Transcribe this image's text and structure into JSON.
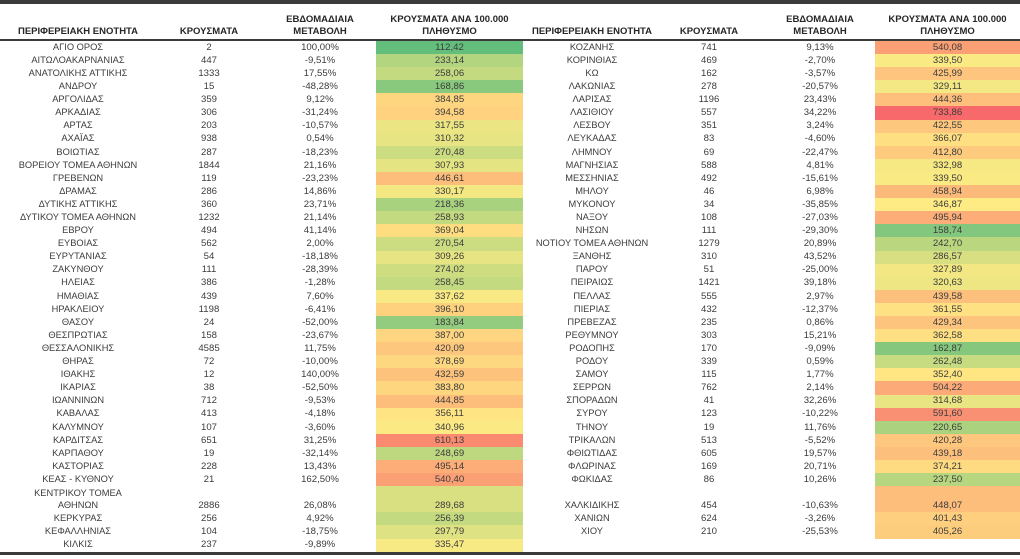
{
  "chart_data": {
    "type": "table",
    "columns": [
      "ΠΕΡΙΦΕΡΕΙΑΚΗ ΕΝΟΤΗΤΑ",
      "ΚΡΟΥΣΜΑΤΑ",
      "ΕΒΔΟΜΑΔΙΑΙΑ ΜΕΤΑΒΟΛΗ",
      "ΚΡΟΥΣΜΑΤΑ ΑΝΑ 100.000 ΠΛΗΘΥΣΜΟ"
    ],
    "color_scale": {
      "min_value": 112.42,
      "min_color": "#63BE7B",
      "mid_value": 346.87,
      "mid_color": "#FFEB84",
      "max_value": 733.86,
      "max_color": "#F8696B"
    },
    "panels": [
      {
        "rows": [
          [
            "ΑΓΙΟ ΟΡΟΣ",
            "2",
            "100,00%",
            "112,42"
          ],
          [
            "ΑΙΤΩΛΟΑΚΑΡΝΑΝΙΑΣ",
            "447",
            "-9,51%",
            "233,14"
          ],
          [
            "ΑΝΑΤΟΛΙΚΗΣ ΑΤΤΙΚΗΣ",
            "1333",
            "17,55%",
            "258,06"
          ],
          [
            "ΑΝΔΡΟΥ",
            "15",
            "-48,28%",
            "168,86"
          ],
          [
            "ΑΡΓΟΛΙΔΑΣ",
            "359",
            "9,12%",
            "384,85"
          ],
          [
            "ΑΡΚΑΔΙΑΣ",
            "306",
            "-31,24%",
            "394,58"
          ],
          [
            "ΑΡΤΑΣ",
            "203",
            "-10,57%",
            "317,55"
          ],
          [
            "ΑΧΑΪΑΣ",
            "938",
            "0,54%",
            "310,32"
          ],
          [
            "ΒΟΙΩΤΙΑΣ",
            "287",
            "-18,23%",
            "270,48"
          ],
          [
            "ΒΟΡΕΙΟΥ ΤΟΜΕΑ ΑΘΗΝΩΝ",
            "1844",
            "21,16%",
            "307,93"
          ],
          [
            "ΓΡΕΒΕΝΩΝ",
            "119",
            "-23,23%",
            "446,61"
          ],
          [
            "ΔΡΑΜΑΣ",
            "286",
            "14,86%",
            "330,17"
          ],
          [
            "ΔΥΤΙΚΗΣ ΑΤΤΙΚΗΣ",
            "360",
            "23,71%",
            "218,36"
          ],
          [
            "ΔΥΤΙΚΟΥ ΤΟΜΕΑ ΑΘΗΝΩΝ",
            "1232",
            "21,14%",
            "258,93"
          ],
          [
            "ΕΒΡΟΥ",
            "494",
            "41,14%",
            "369,04"
          ],
          [
            "ΕΥΒΟΙΑΣ",
            "562",
            "2,00%",
            "270,54"
          ],
          [
            "ΕΥΡΥΤΑΝΙΑΣ",
            "54",
            "-18,18%",
            "309,26"
          ],
          [
            "ΖΑΚΥΝΘΟΥ",
            "111",
            "-28,39%",
            "274,02"
          ],
          [
            "ΗΛΕΙΑΣ",
            "386",
            "-1,28%",
            "258,45"
          ],
          [
            "ΗΜΑΘΙΑΣ",
            "439",
            "7,60%",
            "337,62"
          ],
          [
            "ΗΡΑΚΛΕΙΟΥ",
            "1198",
            "-6,41%",
            "396,10"
          ],
          [
            "ΘΑΣΟΥ",
            "24",
            "-52,00%",
            "183,84"
          ],
          [
            "ΘΕΣΠΡΩΤΙΑΣ",
            "158",
            "-23,67%",
            "387,00"
          ],
          [
            "ΘΕΣΣΑΛΟΝΙΚΗΣ",
            "4585",
            "11,75%",
            "420,09"
          ],
          [
            "ΘΗΡΑΣ",
            "72",
            "-10,00%",
            "378,69"
          ],
          [
            "ΙΘΑΚΗΣ",
            "12",
            "140,00%",
            "432,59"
          ],
          [
            "ΙΚΑΡΙΑΣ",
            "38",
            "-52,50%",
            "383,80"
          ],
          [
            "ΙΩΑΝΝΙΝΩΝ",
            "712",
            "-9,53%",
            "444,85"
          ],
          [
            "ΚΑΒΑΛΑΣ",
            "413",
            "-4,18%",
            "356,11"
          ],
          [
            "ΚΑΛΥΜΝΟΥ",
            "107",
            "-3,60%",
            "340,96"
          ],
          [
            "ΚΑΡΔΙΤΣΑΣ",
            "651",
            "31,25%",
            "610,13"
          ],
          [
            "ΚΑΡΠΑΘΟΥ",
            "19",
            "-32,14%",
            "248,69"
          ],
          [
            "ΚΑΣΤΟΡΙΑΣ",
            "228",
            "13,43%",
            "495,14"
          ],
          [
            "ΚΕΑΣ - ΚΥΘΝΟΥ",
            "21",
            "162,50%",
            "540,40"
          ],
          [
            "ΚΕΝΤΡΙΚΟΥ ΤΟΜΕΑ\nΑΘΗΝΩΝ",
            "2886",
            "26,08%",
            "289,68",
            "tall"
          ],
          [
            "ΚΕΡΚΥΡΑΣ",
            "256",
            "4,92%",
            "256,39"
          ],
          [
            "ΚΕΦΑΛΛΗΝΙΑΣ",
            "104",
            "-18,75%",
            "297,79"
          ],
          [
            "ΚΙΛΚΙΣ",
            "237",
            "-9,89%",
            "335,47"
          ]
        ]
      },
      {
        "rows": [
          [
            "ΚΟΖΑΝΗΣ",
            "741",
            "9,13%",
            "540,08"
          ],
          [
            "ΚΟΡΙΝΘΙΑΣ",
            "469",
            "-2,70%",
            "339,50"
          ],
          [
            "ΚΩ",
            "162",
            "-3,57%",
            "425,99"
          ],
          [
            "ΛΑΚΩΝΙΑΣ",
            "278",
            "-20,57%",
            "329,11"
          ],
          [
            "ΛΑΡΙΣΑΣ",
            "1196",
            "23,43%",
            "444,36"
          ],
          [
            "ΛΑΣΙΘΙΟΥ",
            "557",
            "34,22%",
            "733,86"
          ],
          [
            "ΛΕΣΒΟΥ",
            "351",
            "3,24%",
            "422,55"
          ],
          [
            "ΛΕΥΚΑΔΑΣ",
            "83",
            "-4,60%",
            "366,07"
          ],
          [
            "ΛΗΜΝΟΥ",
            "69",
            "-22,47%",
            "412,80"
          ],
          [
            "ΜΑΓΝΗΣΙΑΣ",
            "588",
            "4,81%",
            "332,98"
          ],
          [
            "ΜΕΣΣΗΝΙΑΣ",
            "492",
            "-15,61%",
            "339,50"
          ],
          [
            "ΜΗΛΟΥ",
            "46",
            "6,98%",
            "458,94"
          ],
          [
            "ΜΥΚΟΝΟΥ",
            "34",
            "-35,85%",
            "346,87"
          ],
          [
            "ΝΑΞΟΥ",
            "108",
            "-27,03%",
            "495,94"
          ],
          [
            "ΝΗΣΩΝ",
            "111",
            "-29,30%",
            "158,74"
          ],
          [
            "ΝΟΤΙΟΥ ΤΟΜΕΑ ΑΘΗΝΩΝ",
            "1279",
            "20,89%",
            "242,70"
          ],
          [
            "ΞΑΝΘΗΣ",
            "310",
            "43,52%",
            "286,57"
          ],
          [
            "ΠΑΡΟΥ",
            "51",
            "-25,00%",
            "327,89"
          ],
          [
            "ΠΕΙΡΑΙΩΣ",
            "1421",
            "39,18%",
            "320,63"
          ],
          [
            "ΠΕΛΛΑΣ",
            "555",
            "2,97%",
            "439,58"
          ],
          [
            "ΠΙΕΡΙΑΣ",
            "432",
            "-12,37%",
            "361,55"
          ],
          [
            "ΠΡΕΒΕΖΑΣ",
            "235",
            "0,86%",
            "429,34"
          ],
          [
            "ΡΕΘΥΜΝΟΥ",
            "303",
            "15,21%",
            "362,58"
          ],
          [
            "ΡΟΔΟΠΗΣ",
            "170",
            "-9,09%",
            "162,87"
          ],
          [
            "ΡΟΔΟΥ",
            "339",
            "0,59%",
            "262,48"
          ],
          [
            "ΣΑΜΟΥ",
            "115",
            "1,77%",
            "352,40"
          ],
          [
            "ΣΕΡΡΩΝ",
            "762",
            "2,14%",
            "504,22"
          ],
          [
            "ΣΠΟΡΑΔΩΝ",
            "41",
            "32,26%",
            "314,68"
          ],
          [
            "ΣΥΡΟΥ",
            "123",
            "-10,22%",
            "591,60"
          ],
          [
            "ΤΗΝΟΥ",
            "19",
            "11,76%",
            "220,65"
          ],
          [
            "ΤΡΙΚΑΛΩΝ",
            "513",
            "-5,52%",
            "420,28"
          ],
          [
            "ΦΘΙΩΤΙΔΑΣ",
            "605",
            "19,57%",
            "439,18"
          ],
          [
            "ΦΛΩΡΙΝΑΣ",
            "169",
            "20,71%",
            "374,21"
          ],
          [
            "ΦΩΚΙΔΑΣ",
            "86",
            "10,26%",
            "237,50"
          ],
          [
            "ΧΑΛΚΙΔΙΚΗΣ",
            "454",
            "-10,63%",
            "448,07",
            "tall"
          ],
          [
            "ΧΑΝΙΩΝ",
            "624",
            "-3,26%",
            "401,43"
          ],
          [
            "ΧΙΟΥ",
            "210",
            "-25,53%",
            "405,26"
          ]
        ]
      }
    ]
  }
}
